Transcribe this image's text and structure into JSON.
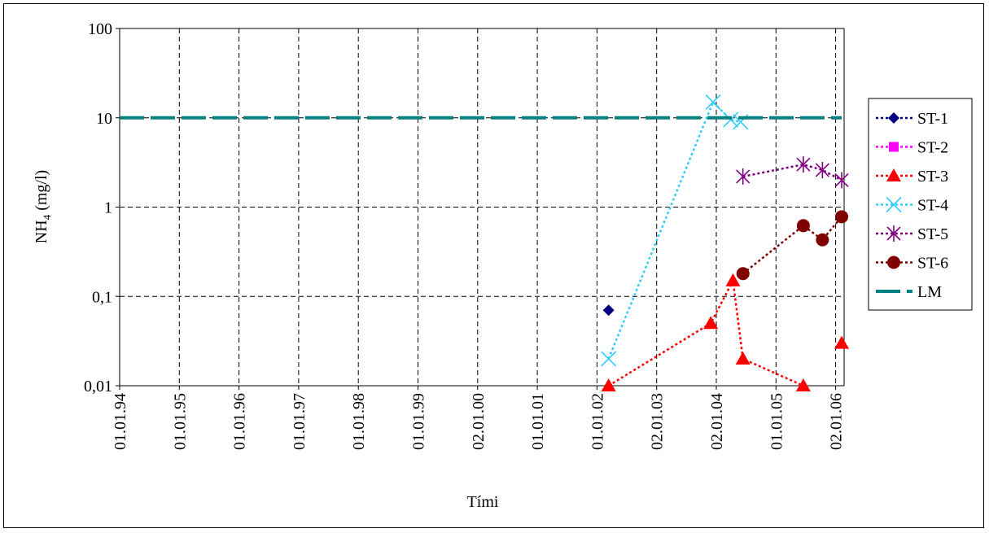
{
  "chart_data": {
    "type": "scatter",
    "title": "",
    "xlabel": "Tími",
    "ylabel_main": "NH",
    "ylabel_sub": "4",
    "ylabel_unit": " (mg/l)",
    "yscale": "log",
    "ylim": [
      0.01,
      100
    ],
    "y_ticks": [
      {
        "value": 0.01,
        "label": "0,01"
      },
      {
        "value": 0.1,
        "label": "0,1"
      },
      {
        "value": 1,
        "label": "1"
      },
      {
        "value": 10,
        "label": "10"
      },
      {
        "value": 100,
        "label": "100"
      }
    ],
    "x_ticks": [
      "01.01.94",
      "01.01.95",
      "01.01.96",
      "01.01.97",
      "01.01.98",
      "01.01.99",
      "02.01.00",
      "01.01.01",
      "01.01.02",
      "02.01.03",
      "02.01.04",
      "01.01.05",
      "02.01.06"
    ],
    "grid": true,
    "legend_position": "right",
    "series": [
      {
        "name": "ST-1",
        "color": "#000080",
        "marker": "diamond",
        "line": "dotted",
        "points": [
          {
            "x": "2002-03-15",
            "y": 0.07
          }
        ]
      },
      {
        "name": "ST-2",
        "color": "#ff00ff",
        "marker": "square",
        "line": "dotted",
        "points": []
      },
      {
        "name": "ST-3",
        "color": "#ff0000",
        "marker": "triangle",
        "line": "dotted",
        "points": [
          {
            "x": "2002-03-15",
            "y": 0.01
          },
          {
            "x": "2003-12-01",
            "y": 0.05
          },
          {
            "x": "2004-04-15",
            "y": 0.15
          },
          {
            "x": "2004-06-15",
            "y": 0.02
          },
          {
            "x": "2005-06-20",
            "y": 0.01
          },
          {
            "x": "2006-02-10",
            "y": 0.03,
            "isolated": true
          }
        ]
      },
      {
        "name": "ST-4",
        "color": "#33ccff",
        "marker": "x",
        "line": "dotted",
        "points": [
          {
            "x": "2002-03-15",
            "y": 0.02
          },
          {
            "x": "2003-12-15",
            "y": 15
          },
          {
            "x": "2004-04-01",
            "y": 9.5
          },
          {
            "x": "2004-06-01",
            "y": 9
          }
        ]
      },
      {
        "name": "ST-5",
        "color": "#800080",
        "marker": "star",
        "line": "dotted",
        "points": [
          {
            "x": "2004-06-15",
            "y": 2.2
          },
          {
            "x": "2005-06-20",
            "y": 3
          },
          {
            "x": "2005-10-15",
            "y": 2.6
          },
          {
            "x": "2006-02-10",
            "y": 2
          }
        ]
      },
      {
        "name": "ST-6",
        "color": "#800000",
        "marker": "circle",
        "line": "dotted",
        "points": [
          {
            "x": "2004-06-15",
            "y": 0.18
          },
          {
            "x": "2005-06-20",
            "y": 0.62
          },
          {
            "x": "2005-10-15",
            "y": 0.43
          },
          {
            "x": "2006-02-10",
            "y": 0.78
          }
        ]
      },
      {
        "name": "LM",
        "color": "#008080",
        "marker": "none",
        "line": "dashed",
        "points": [
          {
            "x": "1994-01-01",
            "y": 10
          },
          {
            "x": "2006-02-10",
            "y": 10
          }
        ]
      }
    ]
  }
}
